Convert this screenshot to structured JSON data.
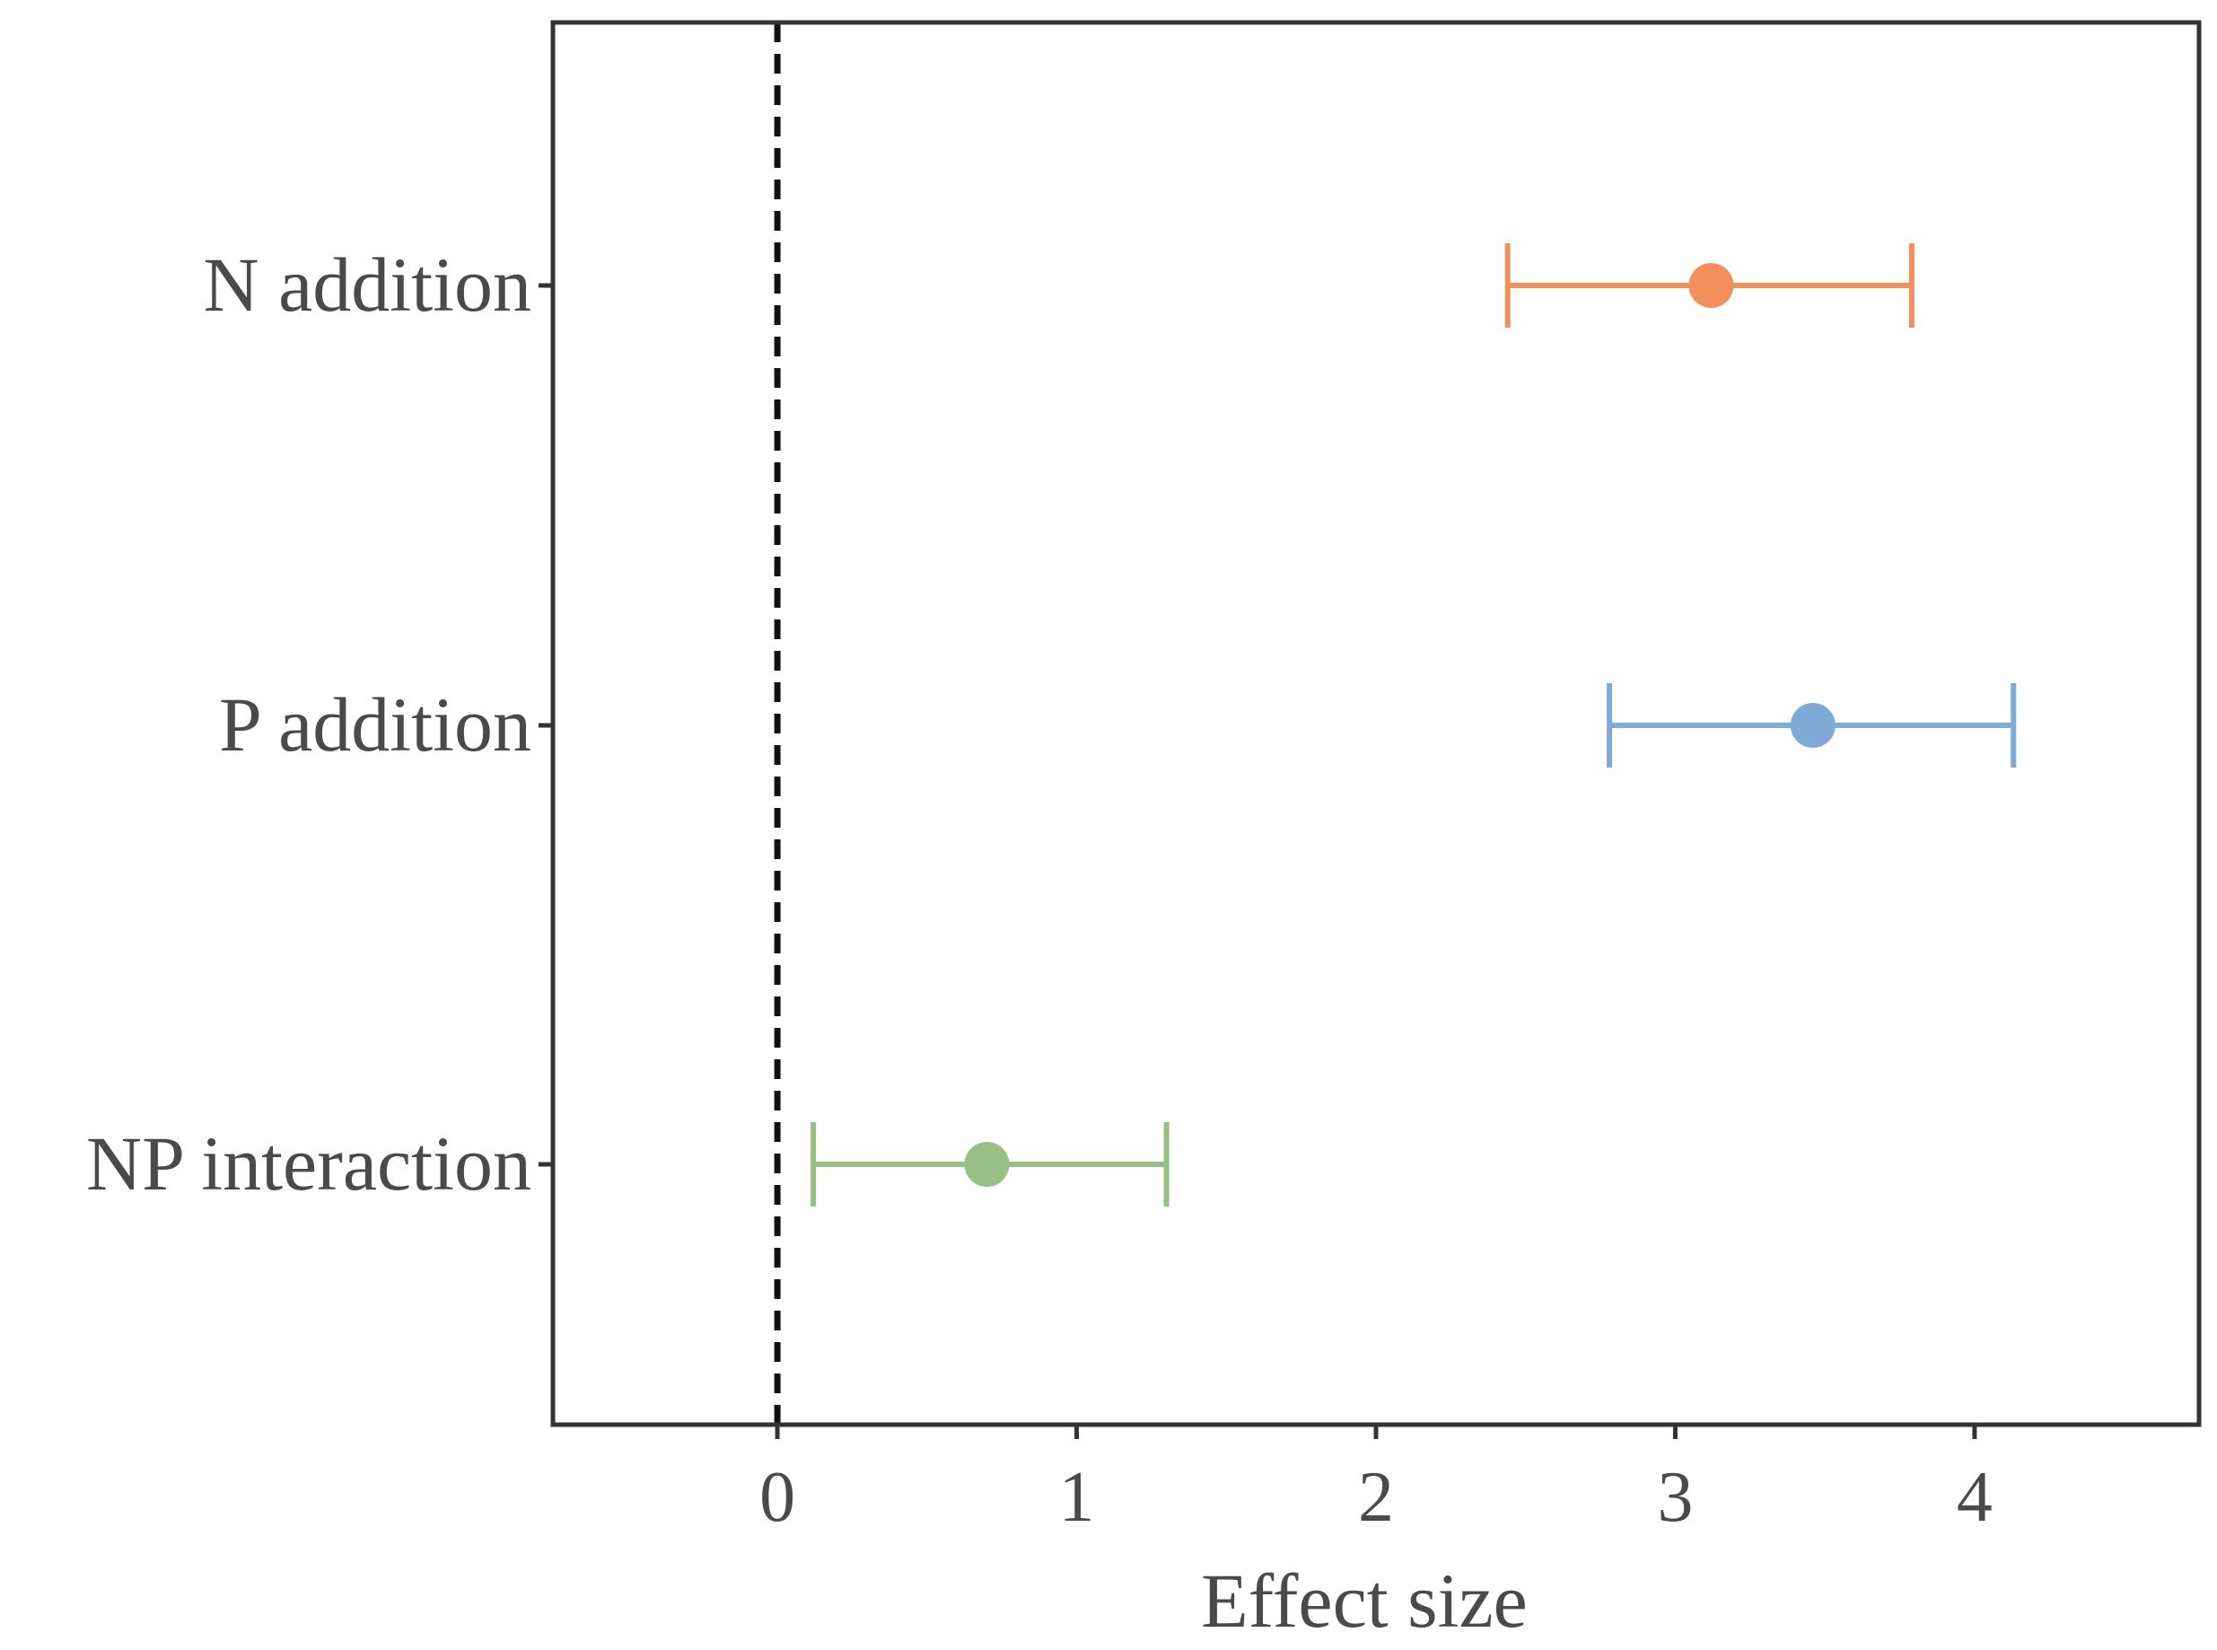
{
  "chart_data": {
    "type": "forest",
    "title": "",
    "xlabel": "Effect size",
    "ylabel": "",
    "xlim": [
      -0.75,
      4.75
    ],
    "x_ticks": [
      0,
      1,
      2,
      3,
      4
    ],
    "x_tick_labels": [
      "0",
      "1",
      "2",
      "3",
      "4"
    ],
    "reference_line": {
      "x": 0,
      "style": "dashed"
    },
    "grid": false,
    "legend": "none",
    "categories": [
      "N addition",
      "P addition",
      "NP interaction"
    ],
    "series": [
      {
        "name": "N addition",
        "estimate": 3.12,
        "ci_low": 2.44,
        "ci_high": 3.79,
        "color": "#F28F5B"
      },
      {
        "name": "P addition",
        "estimate": 3.46,
        "ci_low": 2.78,
        "ci_high": 4.13,
        "color": "#7FA9D6"
      },
      {
        "name": "NP interaction",
        "estimate": 0.7,
        "ci_low": 0.12,
        "ci_high": 1.3,
        "color": "#97BE83"
      }
    ]
  }
}
